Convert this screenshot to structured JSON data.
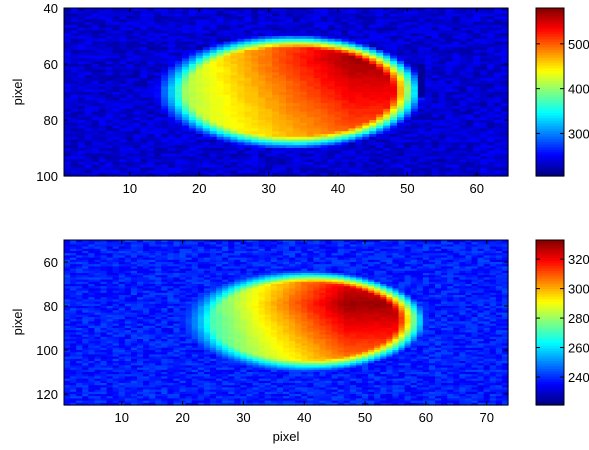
{
  "chart_data": [
    {
      "type": "heatmap",
      "title": "",
      "xlabel": "",
      "ylabel": "pixel",
      "xlim": [
        0.5,
        64.5
      ],
      "ylim": [
        40,
        100
      ],
      "y_reversed": true,
      "xticks": [
        10,
        20,
        30,
        40,
        50,
        60
      ],
      "yticks": [
        40,
        60,
        80,
        100
      ],
      "colormap": "jet",
      "clim": [
        205,
        580
      ],
      "colorbar_ticks": [
        300,
        400,
        500
      ],
      "background_level": 235,
      "blob": {
        "x_range": [
          17,
          51
        ],
        "y_range": [
          52,
          88
        ],
        "center": [
          33,
          70
        ],
        "peak_location": [
          42,
          58
        ],
        "left_edge_value": 400,
        "peak_value": 570,
        "dark_edge_column": 52
      }
    },
    {
      "type": "heatmap",
      "title": "",
      "xlabel": "pixel",
      "ylabel": "pixel",
      "xlim": [
        0.5,
        73.5
      ],
      "ylim": [
        50,
        125
      ],
      "y_reversed": true,
      "xticks": [
        10,
        20,
        30,
        40,
        50,
        60,
        70
      ],
      "yticks": [
        60,
        80,
        100,
        120
      ],
      "colormap": "jet",
      "clim": [
        221,
        333
      ],
      "colorbar_ticks": [
        240,
        260,
        280,
        300,
        320
      ],
      "background_level": 238,
      "blob": {
        "x_range": [
          22,
          57
        ],
        "y_range": [
          67,
          107
        ],
        "center": [
          40,
          87
        ],
        "peak_location": [
          47,
          79
        ],
        "left_edge_value": 262,
        "peak_value": 330
      }
    }
  ]
}
